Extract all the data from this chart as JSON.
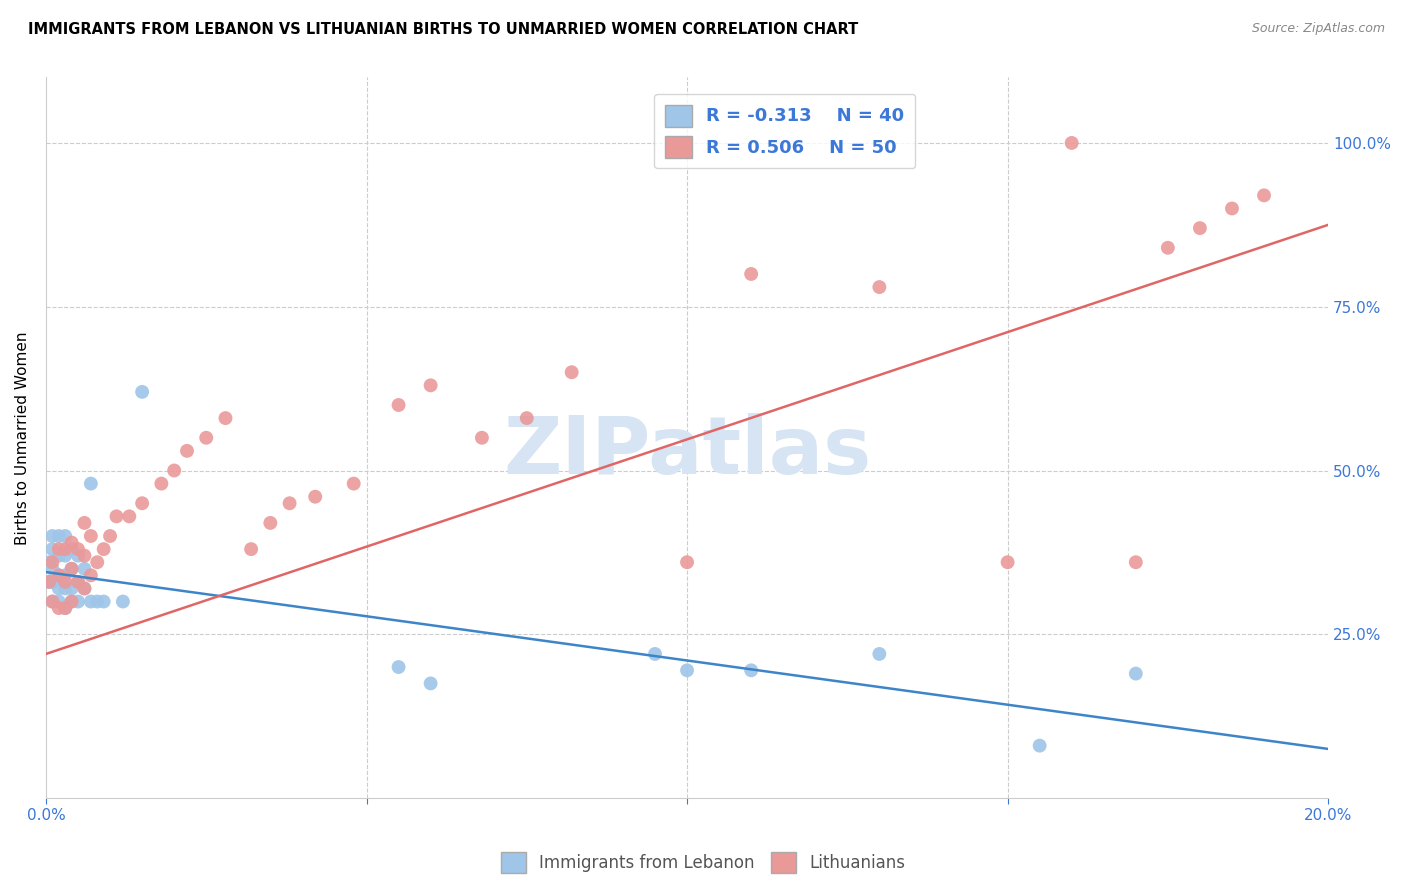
{
  "title": "IMMIGRANTS FROM LEBANON VS LITHUANIAN BIRTHS TO UNMARRIED WOMEN CORRELATION CHART",
  "source": "Source: ZipAtlas.com",
  "ylabel": "Births to Unmarried Women",
  "x_min": 0.0,
  "x_max": 0.2,
  "y_min": 0.0,
  "y_max": 1.1,
  "x_ticks": [
    0.0,
    0.05,
    0.1,
    0.15,
    0.2
  ],
  "x_tick_labels": [
    "0.0%",
    "",
    "",
    "",
    "20.0%"
  ],
  "y_tick_labels_right": [
    "100.0%",
    "75.0%",
    "50.0%",
    "25.0%"
  ],
  "y_tick_vals_right": [
    1.0,
    0.75,
    0.5,
    0.25
  ],
  "legend_r1": "R = -0.313",
  "legend_n1": "N = 40",
  "legend_r2": "R = 0.506",
  "legend_n2": "N = 50",
  "blue_color": "#9fc5e8",
  "pink_color": "#ea9999",
  "blue_line_color": "#3d85c8",
  "pink_line_color": "#e06666",
  "watermark_color": "#d6e4f3",
  "watermark": "ZIPatlas",
  "blue_scatter_x": [
    0.0005,
    0.0005,
    0.001,
    0.001,
    0.001,
    0.001,
    0.001,
    0.002,
    0.002,
    0.002,
    0.002,
    0.002,
    0.003,
    0.003,
    0.003,
    0.003,
    0.003,
    0.004,
    0.004,
    0.004,
    0.004,
    0.005,
    0.005,
    0.005,
    0.006,
    0.006,
    0.007,
    0.007,
    0.008,
    0.009,
    0.012,
    0.015,
    0.055,
    0.06,
    0.095,
    0.1,
    0.11,
    0.13,
    0.155,
    0.17
  ],
  "blue_scatter_y": [
    0.33,
    0.36,
    0.3,
    0.33,
    0.35,
    0.38,
    0.4,
    0.3,
    0.32,
    0.34,
    0.37,
    0.4,
    0.29,
    0.32,
    0.34,
    0.37,
    0.4,
    0.3,
    0.32,
    0.35,
    0.38,
    0.3,
    0.33,
    0.37,
    0.32,
    0.35,
    0.3,
    0.48,
    0.3,
    0.3,
    0.3,
    0.62,
    0.2,
    0.175,
    0.22,
    0.195,
    0.195,
    0.22,
    0.08,
    0.19
  ],
  "pink_scatter_x": [
    0.0005,
    0.001,
    0.001,
    0.002,
    0.002,
    0.002,
    0.003,
    0.003,
    0.003,
    0.004,
    0.004,
    0.004,
    0.005,
    0.005,
    0.006,
    0.006,
    0.006,
    0.007,
    0.007,
    0.008,
    0.009,
    0.01,
    0.011,
    0.013,
    0.015,
    0.018,
    0.02,
    0.022,
    0.025,
    0.028,
    0.032,
    0.035,
    0.038,
    0.042,
    0.048,
    0.055,
    0.06,
    0.068,
    0.075,
    0.082,
    0.1,
    0.11,
    0.13,
    0.15,
    0.16,
    0.17,
    0.175,
    0.18,
    0.185,
    0.19
  ],
  "pink_scatter_y": [
    0.33,
    0.3,
    0.36,
    0.29,
    0.34,
    0.38,
    0.29,
    0.33,
    0.38,
    0.3,
    0.35,
    0.39,
    0.33,
    0.38,
    0.32,
    0.37,
    0.42,
    0.34,
    0.4,
    0.36,
    0.38,
    0.4,
    0.43,
    0.43,
    0.45,
    0.48,
    0.5,
    0.53,
    0.55,
    0.58,
    0.38,
    0.42,
    0.45,
    0.46,
    0.48,
    0.6,
    0.63,
    0.55,
    0.58,
    0.65,
    0.36,
    0.8,
    0.78,
    0.36,
    1.0,
    0.36,
    0.84,
    0.87,
    0.9,
    0.92
  ],
  "blue_trend_x": [
    0.0,
    0.2
  ],
  "blue_trend_y": [
    0.345,
    0.075
  ],
  "pink_trend_x": [
    0.0,
    0.2
  ],
  "pink_trend_y": [
    0.22,
    0.875
  ]
}
